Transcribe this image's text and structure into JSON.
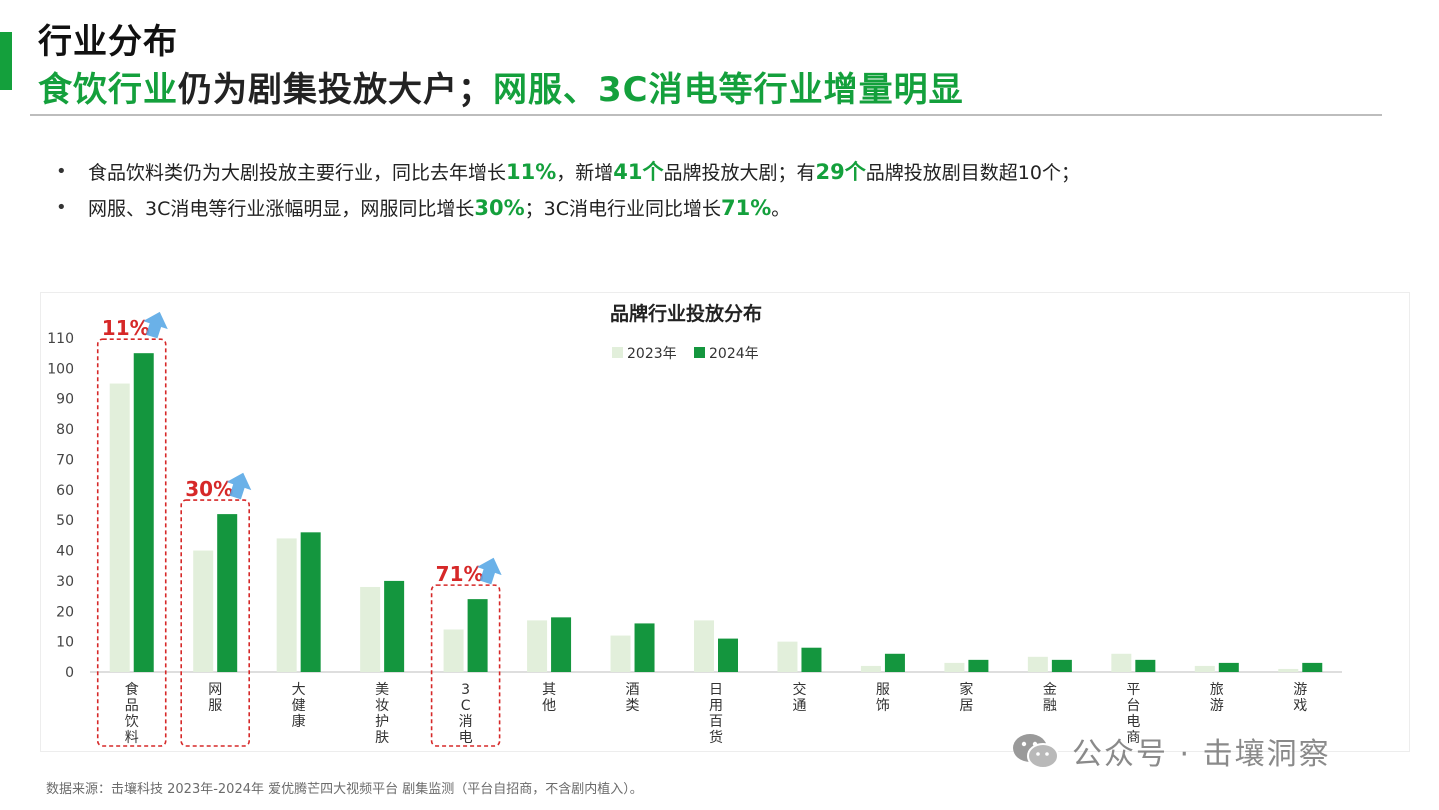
{
  "header": {
    "title": "行业分布",
    "subtitle_green_1": "食饮行业",
    "subtitle_dark_1": "仍为剧集投放大户；",
    "subtitle_green_2": "网服、3C消电等行业增量明显"
  },
  "bullets": [
    {
      "t1": "食品饮料类仍为大剧投放主要行业，同比去年增长",
      "h1": "11%",
      "t2": "，新增",
      "h2": "41个",
      "t3": "品牌投放大剧；有",
      "h3": "29个",
      "t4": "品牌投放剧目数超10个；"
    },
    {
      "t1": "网服、3C消电等行业涨幅明显，网服同比增长",
      "h1": "30%",
      "t2": "；3C消电行业同比增长",
      "h2": "71%",
      "t3": "。"
    }
  ],
  "chart_data": {
    "type": "bar",
    "title": "品牌行业投放分布",
    "categories": [
      "食品饮料",
      "网服",
      "大健康",
      "美妆护肤",
      "3C消电",
      "其他",
      "酒类",
      "日用百货",
      "交通",
      "服饰",
      "家居",
      "金融",
      "平台电商",
      "旅游",
      "游戏"
    ],
    "series": [
      {
        "name": "2023年",
        "values": [
          95,
          40,
          44,
          28,
          14,
          17,
          12,
          17,
          10,
          2,
          3,
          5,
          6,
          2,
          1
        ]
      },
      {
        "name": "2024年",
        "values": [
          105,
          52,
          46,
          30,
          24,
          18,
          16,
          11,
          8,
          6,
          4,
          4,
          4,
          3,
          3
        ]
      }
    ],
    "yticks": [
      "0",
      "10",
      "20",
      "30",
      "40",
      "50",
      "60",
      "70",
      "80",
      "90",
      "100",
      "110"
    ],
    "ylim": [
      0,
      110
    ],
    "legend_position": "top-center",
    "colors": {
      "2023年": "#e2efdb",
      "2024年": "#14963e",
      "highlight": "#d62828",
      "arrow": "#5aa9e6"
    },
    "annotations": [
      {
        "category": "食品饮料",
        "text": "11%"
      },
      {
        "category": "网服",
        "text": "30%"
      },
      {
        "category": "3C消电",
        "text": "71%"
      }
    ]
  },
  "footer": {
    "source": "数据来源：击壤科技 2023年-2024年 爱优腾芒四大视频平台 剧集监测（平台自招商，不含剧内植入）。",
    "watermark": "公众号 · 击壤洞察",
    "watermark_icon": "wechat-icon"
  }
}
